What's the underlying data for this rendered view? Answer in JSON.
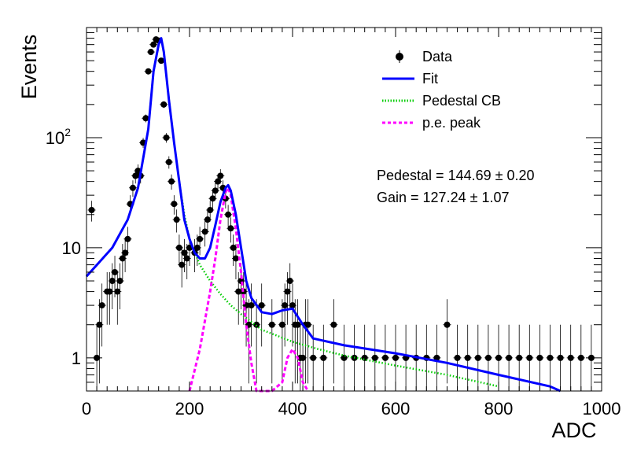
{
  "chart_data": {
    "type": "scatter",
    "xlabel": "ADC",
    "ylabel": "Events",
    "xlim": [
      0,
      1000
    ],
    "ylim": [
      0.5,
      1000
    ],
    "yscale": "log",
    "grid": false,
    "legend_position": "top-right",
    "x_ticks": [
      {
        "value": 0,
        "label": "0"
      },
      {
        "value": 200,
        "label": "200"
      },
      {
        "value": 400,
        "label": "400"
      },
      {
        "value": 600,
        "label": "600"
      },
      {
        "value": 800,
        "label": "800"
      },
      {
        "value": 1000,
        "label": "1000"
      }
    ],
    "y_ticks": [
      {
        "value": 1,
        "label": "1"
      },
      {
        "value": 10,
        "label": "10"
      },
      {
        "value": 100,
        "label": "10",
        "sup": "2"
      }
    ],
    "legend": [
      {
        "label": "Data",
        "style": "marker",
        "color": "#000000"
      },
      {
        "label": "Fit",
        "style": "solid",
        "color": "#0000ff"
      },
      {
        "label": "Pedestal CB",
        "style": "dotted",
        "color": "#00cc00"
      },
      {
        "label": "p.e. peak",
        "style": "dashed",
        "color": "#ff00ff"
      }
    ],
    "annotations": [
      {
        "name": "pedestal",
        "text": "Pedestal = 144.69 ± 0.20"
      },
      {
        "name": "gain",
        "text": "Gain = 127.24 ± 1.07"
      }
    ],
    "data_points": {
      "x": [
        10,
        20,
        25,
        30,
        40,
        45,
        50,
        55,
        60,
        65,
        70,
        75,
        80,
        85,
        90,
        95,
        100,
        105,
        110,
        115,
        120,
        125,
        130,
        135,
        140,
        145,
        150,
        155,
        160,
        165,
        170,
        175,
        180,
        185,
        190,
        195,
        200,
        210,
        215,
        220,
        230,
        235,
        240,
        245,
        250,
        255,
        260,
        265,
        270,
        275,
        280,
        285,
        290,
        295,
        300,
        305,
        310,
        315,
        320,
        330,
        340,
        360,
        380,
        385,
        390,
        395,
        400,
        405,
        410,
        415,
        420,
        425,
        430,
        440,
        460,
        480,
        500,
        520,
        540,
        560,
        580,
        600,
        620,
        640,
        660,
        680,
        700,
        720,
        740,
        760,
        780,
        800,
        820,
        840,
        860,
        880,
        900,
        920,
        940,
        960,
        980
      ],
      "y": [
        22,
        1,
        2,
        3,
        4,
        4,
        5,
        6,
        4,
        5,
        8,
        9,
        12,
        25,
        35,
        45,
        50,
        45,
        90,
        150,
        400,
        600,
        700,
        780,
        760,
        500,
        200,
        100,
        60,
        40,
        25,
        18,
        10,
        7,
        9,
        8,
        10,
        9,
        10,
        12,
        14,
        18,
        22,
        28,
        33,
        40,
        45,
        35,
        28,
        20,
        15,
        10,
        8,
        4,
        5,
        4,
        3,
        2,
        3,
        2,
        3,
        2,
        2,
        3,
        4,
        5,
        3,
        2,
        2,
        1,
        1,
        2,
        2,
        1,
        1,
        2,
        1,
        1,
        1,
        1,
        1,
        1,
        1,
        1,
        1,
        1,
        2,
        1,
        1,
        1,
        1,
        1,
        1,
        1,
        1,
        1,
        1,
        1,
        1,
        1,
        1
      ]
    },
    "fit_curve": {
      "x": [
        0,
        50,
        80,
        100,
        120,
        130,
        140,
        145,
        150,
        160,
        170,
        180,
        190,
        200,
        210,
        220,
        230,
        240,
        250,
        260,
        270,
        275,
        280,
        290,
        300,
        310,
        320,
        340,
        360,
        380,
        400,
        420,
        440,
        500,
        600,
        700,
        800,
        900,
        920
      ],
      "y": [
        5.5,
        10,
        18,
        35,
        120,
        400,
        700,
        800,
        600,
        220,
        90,
        40,
        18,
        12,
        9,
        8,
        8,
        10,
        16,
        26,
        35,
        37,
        33,
        20,
        10,
        5,
        3.5,
        2.6,
        2.5,
        2.7,
        2.8,
        2,
        1.5,
        1.3,
        1.1,
        0.9,
        0.7,
        0.55,
        0.5
      ]
    },
    "pedestal_curve": {
      "x": [
        0,
        50,
        80,
        100,
        120,
        130,
        140,
        145,
        150,
        160,
        170,
        180,
        190,
        200,
        220,
        240,
        260,
        280,
        300,
        340,
        400,
        450,
        500,
        600,
        700,
        800
      ],
      "y": [
        5.5,
        10,
        18,
        35,
        120,
        400,
        700,
        800,
        600,
        220,
        90,
        40,
        20,
        12,
        7,
        5,
        3.8,
        3,
        2.5,
        1.8,
        1.4,
        1.2,
        1.05,
        0.85,
        0.7,
        0.55
      ]
    },
    "pe_peak_curve": {
      "x": [
        200,
        220,
        240,
        250,
        260,
        270,
        275,
        280,
        290,
        300,
        310,
        320,
        330,
        360,
        380,
        390,
        400,
        410,
        420,
        430
      ],
      "y": [
        0.5,
        1.2,
        4,
        8,
        18,
        32,
        35,
        30,
        15,
        6,
        2,
        0.9,
        0.5,
        0.5,
        0.6,
        1,
        1.2,
        1,
        0.6,
        0.5
      ]
    }
  }
}
